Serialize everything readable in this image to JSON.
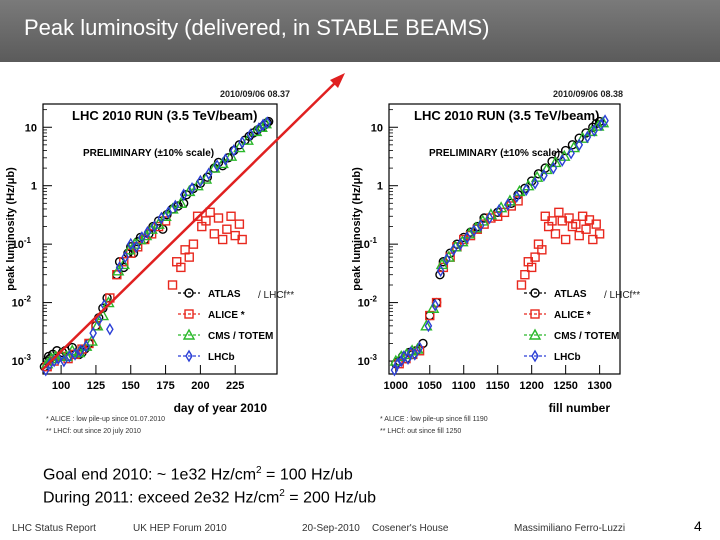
{
  "slide": {
    "title": "Peak luminosity (delivered, in STABLE BEAMS)",
    "goal_line1_pre": "Goal end 2010:  ~ 1e32 Hz/cm",
    "goal_line1_sup": "2",
    "goal_line1_post": " = 100 Hz/ub",
    "goal_line2_pre": "During 2011: exceed 2e32 Hz/cm",
    "goal_line2_sup": "2",
    "goal_line2_post": " = 200 Hz/ub",
    "footer": {
      "report": "LHC Status Report",
      "forum": "UK HEP Forum 2010",
      "date": "20-Sep-2010",
      "venue": "Cosener's House",
      "author": "Massimiliano Ferro-Luzzi",
      "page": "4"
    }
  },
  "colors": {
    "atlas": "#000000",
    "alice": "#e8281e",
    "cms": "#2ab82a",
    "lhcb": "#2b3fd6",
    "trend": "#e02020"
  },
  "chart_data": [
    {
      "type": "scatter",
      "title": "LHC 2010 RUN (3.5 TeV/beam)",
      "timestamp": "2010/09/06   08.37",
      "preliminary": "PRELIMINARY (±10% scale)",
      "xlabel": "day of year 2010",
      "ylabel": "peak luminosity (Hz/μb)",
      "yscale": "log",
      "xlim": [
        87,
        255
      ],
      "ylim": [
        0.0006,
        25
      ],
      "xticks": [
        100,
        125,
        150,
        175,
        200,
        225
      ],
      "yticks": [
        {
          "value": 10,
          "label": "10"
        },
        {
          "value": 1,
          "label": "1"
        },
        {
          "value": 0.1,
          "label": "10-1"
        },
        {
          "value": 0.01,
          "label": "10-2"
        },
        {
          "value": 0.001,
          "label": "10-3"
        }
      ],
      "legend_position": "lower-right",
      "legend_suffix": "/ LHCf**",
      "footnote1": "* ALICE : low pile-up since 01.07.2010",
      "footnote2": "** LHCf: out since 20 july 2010",
      "series": [
        {
          "name": "ATLAS",
          "marker": "circle",
          "color": "#000000",
          "x": [
            88,
            90,
            91,
            92,
            94,
            97,
            99,
            101,
            103,
            105,
            108,
            113,
            115,
            117,
            120,
            125,
            127,
            130,
            133,
            140,
            142,
            145,
            148,
            150,
            152,
            155,
            157,
            160,
            163,
            166,
            170,
            173,
            176,
            180,
            184,
            188,
            190,
            195,
            200,
            205,
            210,
            213,
            216,
            220,
            224,
            228,
            232,
            235,
            238,
            241,
            244,
            246,
            248,
            249
          ],
          "y": [
            0.0008,
            0.001,
            0.0012,
            0.0011,
            0.0013,
            0.0015,
            0.0012,
            0.0014,
            0.0015,
            0.0012,
            0.0017,
            0.0013,
            0.0014,
            0.0016,
            0.002,
            0.004,
            0.0055,
            0.008,
            0.012,
            0.03,
            0.05,
            0.04,
            0.07,
            0.09,
            0.07,
            0.11,
            0.13,
            0.12,
            0.15,
            0.2,
            0.25,
            0.18,
            0.32,
            0.4,
            0.45,
            0.5,
            0.7,
            0.9,
            1.1,
            1.4,
            2,
            2.5,
            2.2,
            3,
            4,
            5,
            6,
            7,
            8,
            9,
            10,
            11,
            12,
            12.5
          ]
        },
        {
          "name": "ALICE *",
          "marker": "square",
          "color": "#e8281e",
          "x": [
            90,
            95,
            100,
            105,
            110,
            115,
            120,
            125,
            135,
            140,
            145,
            150,
            155,
            160,
            165,
            170,
            175,
            180,
            183,
            186,
            189,
            192,
            195,
            198,
            201,
            204,
            207,
            210,
            213,
            216,
            219,
            222,
            225,
            228,
            230
          ],
          "y": [
            0.0008,
            0.001,
            0.0012,
            0.0011,
            0.0013,
            0.0016,
            0.002,
            0.004,
            0.012,
            0.03,
            0.05,
            0.07,
            0.09,
            0.12,
            0.15,
            0.2,
            0.25,
            0.02,
            0.05,
            0.04,
            0.08,
            0.06,
            0.1,
            0.3,
            0.2,
            0.25,
            0.35,
            0.15,
            0.28,
            0.12,
            0.18,
            0.3,
            0.14,
            0.22,
            0.12
          ]
        },
        {
          "name": "CMS / TOTEM",
          "marker": "triangle",
          "color": "#2ab82a",
          "x": [
            90,
            93,
            96,
            100,
            104,
            108,
            113,
            118,
            122,
            126,
            130,
            134,
            141,
            145,
            149,
            153,
            157,
            161,
            165,
            170,
            175,
            180,
            186,
            192,
            198,
            204,
            210,
            216,
            222,
            228,
            234,
            240,
            244,
            247
          ],
          "y": [
            0.0009,
            0.0011,
            0.0012,
            0.0013,
            0.0012,
            0.0015,
            0.0014,
            0.0018,
            0.0022,
            0.004,
            0.006,
            0.01,
            0.035,
            0.045,
            0.08,
            0.1,
            0.12,
            0.14,
            0.18,
            0.22,
            0.3,
            0.4,
            0.5,
            0.8,
            1,
            1.3,
            2,
            2.4,
            3.2,
            4.5,
            6,
            8.5,
            10,
            11.5
          ]
        },
        {
          "name": "LHCb",
          "marker": "diamond",
          "color": "#2b3fd6",
          "x": [
            89,
            92,
            95,
            98,
            102,
            106,
            110,
            114,
            118,
            123,
            127,
            131,
            135,
            142,
            146,
            150,
            154,
            158,
            162,
            167,
            172,
            177,
            182,
            188,
            194,
            200,
            206,
            212,
            218,
            224,
            230,
            236,
            242,
            245,
            248
          ],
          "y": [
            0.0007,
            0.0009,
            0.001,
            0.0011,
            0.001,
            0.0012,
            0.0013,
            0.0015,
            0.0018,
            0.003,
            0.005,
            0.009,
            0.0035,
            0.04,
            0.06,
            0.1,
            0.09,
            0.13,
            0.16,
            0.2,
            0.28,
            0.35,
            0.45,
            0.7,
            0.9,
            1.2,
            1.6,
            2.2,
            2.8,
            4,
            5.5,
            7.5,
            9.5,
            11,
            12
          ]
        }
      ]
    },
    {
      "type": "scatter",
      "title": "LHC 2010 RUN (3.5 TeV/beam)",
      "timestamp": "2010/09/06   08.38",
      "preliminary": "PRELIMINARY (±10% scale)",
      "xlabel": "fill number",
      "ylabel": "peak luminosity (Hz/μb)",
      "yscale": "log",
      "xlim": [
        990,
        1330
      ],
      "ylim": [
        0.0006,
        25
      ],
      "xticks": [
        1000,
        1050,
        1100,
        1150,
        1200,
        1250,
        1300
      ],
      "yticks": [
        {
          "value": 10,
          "label": "10"
        },
        {
          "value": 1,
          "label": "1"
        },
        {
          "value": 0.1,
          "label": "10-1"
        },
        {
          "value": 0.01,
          "label": "10-2"
        },
        {
          "value": 0.001,
          "label": "10-3"
        }
      ],
      "legend_position": "lower-right",
      "legend_suffix": "/ LHCf**",
      "footnote1": "* ALICE : low pile-up since fill 1190",
      "footnote2": "** LHCf: out since fill 1250",
      "series": [
        {
          "name": "ATLAS",
          "marker": "circle",
          "color": "#000000",
          "x": [
            1000,
            1005,
            1010,
            1015,
            1020,
            1025,
            1030,
            1040,
            1050,
            1060,
            1065,
            1070,
            1080,
            1090,
            1100,
            1110,
            1120,
            1130,
            1150,
            1170,
            1180,
            1190,
            1200,
            1210,
            1220,
            1230,
            1240,
            1250,
            1260,
            1270,
            1280,
            1290,
            1295,
            1300
          ],
          "y": [
            0.0009,
            0.001,
            0.0012,
            0.0011,
            0.0014,
            0.0013,
            0.0015,
            0.002,
            0.006,
            0.01,
            0.03,
            0.05,
            0.07,
            0.1,
            0.13,
            0.16,
            0.2,
            0.28,
            0.35,
            0.5,
            0.7,
            0.9,
            1.2,
            1.6,
            2,
            2.6,
            3.3,
            4,
            5,
            6.5,
            8,
            10,
            11.5,
            12.5
          ]
        },
        {
          "name": "ALICE *",
          "marker": "square",
          "color": "#e8281e",
          "x": [
            1005,
            1015,
            1025,
            1035,
            1050,
            1060,
            1070,
            1080,
            1090,
            1100,
            1110,
            1120,
            1130,
            1140,
            1150,
            1160,
            1170,
            1180,
            1185,
            1190,
            1195,
            1200,
            1205,
            1210,
            1215,
            1220,
            1225,
            1230,
            1235,
            1240,
            1245,
            1250,
            1255,
            1260,
            1265,
            1270,
            1275,
            1280,
            1285,
            1290,
            1295,
            1300
          ],
          "y": [
            0.0009,
            0.0011,
            0.0013,
            0.0015,
            0.006,
            0.01,
            0.04,
            0.06,
            0.09,
            0.12,
            0.14,
            0.18,
            0.22,
            0.28,
            0.3,
            0.35,
            0.45,
            0.55,
            0.02,
            0.03,
            0.05,
            0.04,
            0.06,
            0.1,
            0.08,
            0.3,
            0.2,
            0.25,
            0.15,
            0.35,
            0.25,
            0.12,
            0.28,
            0.2,
            0.22,
            0.14,
            0.3,
            0.18,
            0.26,
            0.12,
            0.22,
            0.15
          ]
        },
        {
          "name": "CMS / TOTEM",
          "marker": "triangle",
          "color": "#2ab82a",
          "x": [
            1000,
            1008,
            1016,
            1024,
            1032,
            1045,
            1055,
            1068,
            1078,
            1088,
            1098,
            1108,
            1118,
            1128,
            1140,
            1155,
            1168,
            1182,
            1195,
            1208,
            1222,
            1235,
            1248,
            1262,
            1275,
            1288,
            1298,
            1305
          ],
          "y": [
            0.001,
            0.0012,
            0.0013,
            0.0015,
            0.0016,
            0.004,
            0.008,
            0.045,
            0.06,
            0.09,
            0.11,
            0.15,
            0.19,
            0.25,
            0.32,
            0.42,
            0.55,
            0.8,
            1,
            1.4,
            1.9,
            2.5,
            3.2,
            4.5,
            6.5,
            8.5,
            10.5,
            12
          ]
        },
        {
          "name": "LHCb",
          "marker": "diamond",
          "color": "#2b3fd6",
          "x": [
            998,
            1003,
            1008,
            1012,
            1018,
            1022,
            1028,
            1035,
            1048,
            1058,
            1066,
            1075,
            1085,
            1095,
            1105,
            1115,
            1125,
            1138,
            1152,
            1165,
            1178,
            1192,
            1205,
            1218,
            1232,
            1245,
            1258,
            1270,
            1282,
            1292,
            1302,
            1308
          ],
          "y": [
            0.0007,
            0.0009,
            0.001,
            0.0012,
            0.0011,
            0.0014,
            0.0013,
            0.0017,
            0.004,
            0.009,
            0.035,
            0.055,
            0.08,
            0.1,
            0.13,
            0.17,
            0.21,
            0.28,
            0.38,
            0.48,
            0.65,
            0.85,
            1.1,
            1.5,
            2,
            2.7,
            3.6,
            5,
            6.8,
            8.8,
            11,
            13
          ]
        }
      ]
    }
  ]
}
